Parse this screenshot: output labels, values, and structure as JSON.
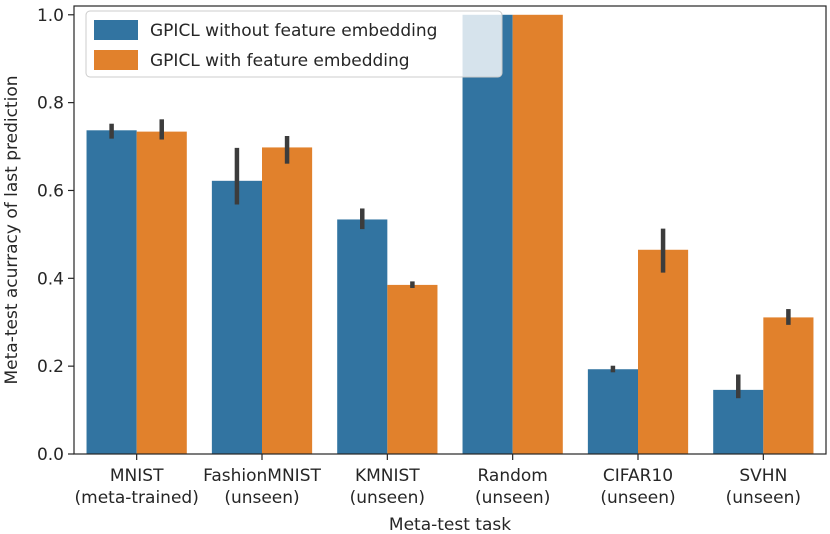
{
  "chart_data": {
    "type": "bar",
    "xlabel": "Meta-test task",
    "ylabel": "Meta-test acurracy of last prediction",
    "ylim": [
      0.0,
      1.02
    ],
    "yticks": [
      "0.0",
      "0.2",
      "0.4",
      "0.6",
      "0.8",
      "1.0"
    ],
    "categories": [
      [
        "MNIST",
        "(meta-trained)"
      ],
      [
        "FashionMNIST",
        "(unseen)"
      ],
      [
        "KMNIST",
        "(unseen)"
      ],
      [
        "Random",
        "(unseen)"
      ],
      [
        "CIFAR10",
        "(unseen)"
      ],
      [
        "SVHN",
        "(unseen)"
      ]
    ],
    "series": [
      {
        "name": "GPICL without feature embedding",
        "color": "#3274a1",
        "values": [
          0.737,
          0.622,
          0.534,
          1.0,
          0.193,
          0.146
        ],
        "error_low": [
          0.718,
          0.568,
          0.512,
          1.0,
          0.186,
          0.127
        ],
        "error_high": [
          0.752,
          0.697,
          0.559,
          1.0,
          0.201,
          0.181
        ]
      },
      {
        "name": "GPICL with feature embedding",
        "color": "#e1812c",
        "values": [
          0.734,
          0.698,
          0.385,
          1.0,
          0.465,
          0.311
        ],
        "error_low": [
          0.716,
          0.661,
          0.378,
          1.0,
          0.413,
          0.294
        ],
        "error_high": [
          0.762,
          0.724,
          0.393,
          1.0,
          0.513,
          0.33
        ]
      }
    ],
    "errorbar_color": "#3c3c3c",
    "legend_position": "top-left",
    "grid": false
  }
}
